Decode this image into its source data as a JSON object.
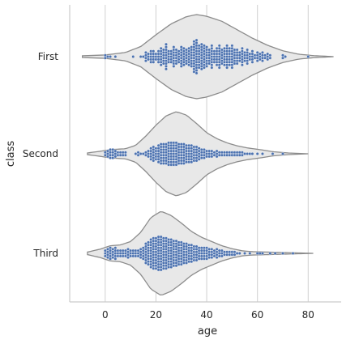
{
  "chart_data": {
    "type": "violin-swarm",
    "xlabel": "age",
    "ylabel": "class",
    "xlim": [
      -14,
      93
    ],
    "x_ticks": [
      0,
      20,
      40,
      60,
      80
    ],
    "categories": [
      "First",
      "Second",
      "Third"
    ],
    "grid": "vertical",
    "violin_fill": "#e8e8e8",
    "violin_stroke": "#8c8c8c",
    "point_color": "#4c72b0",
    "series": [
      {
        "category": "First",
        "range": [
          -9,
          90
        ],
        "density": [
          [
            -9,
            0.02
          ],
          [
            0,
            0.04
          ],
          [
            8,
            0.1
          ],
          [
            14,
            0.24
          ],
          [
            20,
            0.52
          ],
          [
            26,
            0.78
          ],
          [
            32,
            0.95
          ],
          [
            36,
            1.0
          ],
          [
            40,
            0.96
          ],
          [
            46,
            0.84
          ],
          [
            52,
            0.64
          ],
          [
            58,
            0.44
          ],
          [
            64,
            0.27
          ],
          [
            70,
            0.14
          ],
          [
            76,
            0.06
          ],
          [
            82,
            0.025
          ],
          [
            90,
            0.0
          ]
        ],
        "points": [
          [
            0,
            2
          ],
          [
            1,
            1
          ],
          [
            2,
            1
          ],
          [
            4,
            1
          ],
          [
            11,
            1
          ],
          [
            14,
            1
          ],
          [
            15,
            1
          ],
          [
            16,
            4
          ],
          [
            17,
            3
          ],
          [
            18,
            5
          ],
          [
            19,
            5
          ],
          [
            20,
            3
          ],
          [
            21,
            5
          ],
          [
            22,
            7
          ],
          [
            23,
            6
          ],
          [
            24,
            10
          ],
          [
            25,
            5
          ],
          [
            26,
            5
          ],
          [
            27,
            8
          ],
          [
            28,
            6
          ],
          [
            29,
            5
          ],
          [
            30,
            8
          ],
          [
            31,
            7
          ],
          [
            32,
            6
          ],
          [
            33,
            7
          ],
          [
            34,
            8
          ],
          [
            35,
            12
          ],
          [
            36,
            13
          ],
          [
            37,
            9
          ],
          [
            38,
            10
          ],
          [
            39,
            9
          ],
          [
            40,
            8
          ],
          [
            41,
            6
          ],
          [
            42,
            9
          ],
          [
            43,
            5
          ],
          [
            44,
            7
          ],
          [
            45,
            9
          ],
          [
            46,
            6
          ],
          [
            47,
            7
          ],
          [
            48,
            9
          ],
          [
            49,
            7
          ],
          [
            50,
            9
          ],
          [
            51,
            6
          ],
          [
            52,
            6
          ],
          [
            53,
            4
          ],
          [
            54,
            7
          ],
          [
            55,
            4
          ],
          [
            56,
            6
          ],
          [
            57,
            3
          ],
          [
            58,
            5
          ],
          [
            59,
            2
          ],
          [
            60,
            4
          ],
          [
            61,
            3
          ],
          [
            62,
            4
          ],
          [
            63,
            2
          ],
          [
            64,
            3
          ],
          [
            65,
            2
          ],
          [
            70,
            2
          ],
          [
            71,
            1
          ],
          [
            80,
            1
          ]
        ]
      },
      {
        "category": "Second",
        "range": [
          -7,
          80
        ],
        "density": [
          [
            -7,
            0.02
          ],
          [
            -2,
            0.06
          ],
          [
            2,
            0.1
          ],
          [
            8,
            0.12
          ],
          [
            12,
            0.2
          ],
          [
            16,
            0.42
          ],
          [
            20,
            0.68
          ],
          [
            24,
            0.9
          ],
          [
            28,
            1.0
          ],
          [
            32,
            0.92
          ],
          [
            36,
            0.72
          ],
          [
            40,
            0.5
          ],
          [
            44,
            0.36
          ],
          [
            48,
            0.26
          ],
          [
            52,
            0.19
          ],
          [
            56,
            0.14
          ],
          [
            62,
            0.09
          ],
          [
            66,
            0.05
          ],
          [
            72,
            0.02
          ],
          [
            80,
            0.0
          ]
        ],
        "points": [
          [
            0,
            2
          ],
          [
            1,
            3
          ],
          [
            2,
            4
          ],
          [
            3,
            4
          ],
          [
            4,
            3
          ],
          [
            5,
            2
          ],
          [
            6,
            2
          ],
          [
            7,
            2
          ],
          [
            8,
            2
          ],
          [
            12,
            1
          ],
          [
            13,
            2
          ],
          [
            14,
            1
          ],
          [
            15,
            1
          ],
          [
            16,
            2
          ],
          [
            17,
            3
          ],
          [
            18,
            5
          ],
          [
            19,
            6
          ],
          [
            20,
            5
          ],
          [
            21,
            7
          ],
          [
            22,
            8
          ],
          [
            23,
            8
          ],
          [
            24,
            8
          ],
          [
            25,
            9
          ],
          [
            26,
            9
          ],
          [
            27,
            9
          ],
          [
            28,
            9
          ],
          [
            29,
            8
          ],
          [
            30,
            8
          ],
          [
            31,
            8
          ],
          [
            32,
            7
          ],
          [
            33,
            7
          ],
          [
            34,
            7
          ],
          [
            35,
            6
          ],
          [
            36,
            6
          ],
          [
            37,
            5
          ],
          [
            38,
            4
          ],
          [
            39,
            4
          ],
          [
            40,
            3
          ],
          [
            41,
            3
          ],
          [
            42,
            3
          ],
          [
            43,
            2
          ],
          [
            44,
            3
          ],
          [
            45,
            2
          ],
          [
            46,
            2
          ],
          [
            47,
            2
          ],
          [
            48,
            2
          ],
          [
            49,
            2
          ],
          [
            50,
            2
          ],
          [
            51,
            2
          ],
          [
            52,
            2
          ],
          [
            53,
            2
          ],
          [
            54,
            2
          ],
          [
            55,
            1
          ],
          [
            56,
            1
          ],
          [
            57,
            1
          ],
          [
            58,
            1
          ],
          [
            60,
            1
          ],
          [
            62,
            1
          ],
          [
            66,
            1
          ],
          [
            70,
            1
          ]
        ]
      },
      {
        "category": "Third",
        "range": [
          -7,
          82
        ],
        "density": [
          [
            -7,
            0.03
          ],
          [
            -2,
            0.1
          ],
          [
            2,
            0.18
          ],
          [
            6,
            0.2
          ],
          [
            10,
            0.28
          ],
          [
            14,
            0.5
          ],
          [
            18,
            0.85
          ],
          [
            22,
            1.0
          ],
          [
            26,
            0.9
          ],
          [
            30,
            0.72
          ],
          [
            34,
            0.52
          ],
          [
            38,
            0.38
          ],
          [
            42,
            0.28
          ],
          [
            46,
            0.18
          ],
          [
            50,
            0.11
          ],
          [
            54,
            0.06
          ],
          [
            58,
            0.04
          ],
          [
            64,
            0.03
          ],
          [
            70,
            0.02
          ],
          [
            76,
            0.01
          ],
          [
            82,
            0.0
          ]
        ],
        "points": [
          [
            0,
            3
          ],
          [
            1,
            4
          ],
          [
            2,
            5
          ],
          [
            3,
            4
          ],
          [
            4,
            5
          ],
          [
            5,
            3
          ],
          [
            6,
            3
          ],
          [
            7,
            3
          ],
          [
            8,
            3
          ],
          [
            9,
            4
          ],
          [
            10,
            3
          ],
          [
            11,
            3
          ],
          [
            12,
            3
          ],
          [
            13,
            3
          ],
          [
            14,
            4
          ],
          [
            15,
            5
          ],
          [
            16,
            8
          ],
          [
            17,
            9
          ],
          [
            18,
            11
          ],
          [
            19,
            12
          ],
          [
            20,
            12
          ],
          [
            21,
            13
          ],
          [
            22,
            13
          ],
          [
            23,
            12
          ],
          [
            24,
            12
          ],
          [
            25,
            11
          ],
          [
            26,
            11
          ],
          [
            27,
            10
          ],
          [
            28,
            10
          ],
          [
            29,
            9
          ],
          [
            30,
            9
          ],
          [
            31,
            8
          ],
          [
            32,
            8
          ],
          [
            33,
            7
          ],
          [
            34,
            7
          ],
          [
            35,
            6
          ],
          [
            36,
            6
          ],
          [
            37,
            5
          ],
          [
            38,
            5
          ],
          [
            39,
            5
          ],
          [
            40,
            5
          ],
          [
            41,
            4
          ],
          [
            42,
            4
          ],
          [
            43,
            3
          ],
          [
            44,
            4
          ],
          [
            45,
            3
          ],
          [
            46,
            3
          ],
          [
            47,
            2
          ],
          [
            48,
            2
          ],
          [
            49,
            2
          ],
          [
            50,
            2
          ],
          [
            51,
            2
          ],
          [
            52,
            1
          ],
          [
            53,
            1
          ],
          [
            55,
            1
          ],
          [
            57,
            1
          ],
          [
            60,
            1
          ],
          [
            61,
            1
          ],
          [
            62,
            1
          ],
          [
            65,
            1
          ],
          [
            67,
            1
          ],
          [
            70,
            1
          ],
          [
            74,
            1
          ]
        ]
      }
    ]
  }
}
